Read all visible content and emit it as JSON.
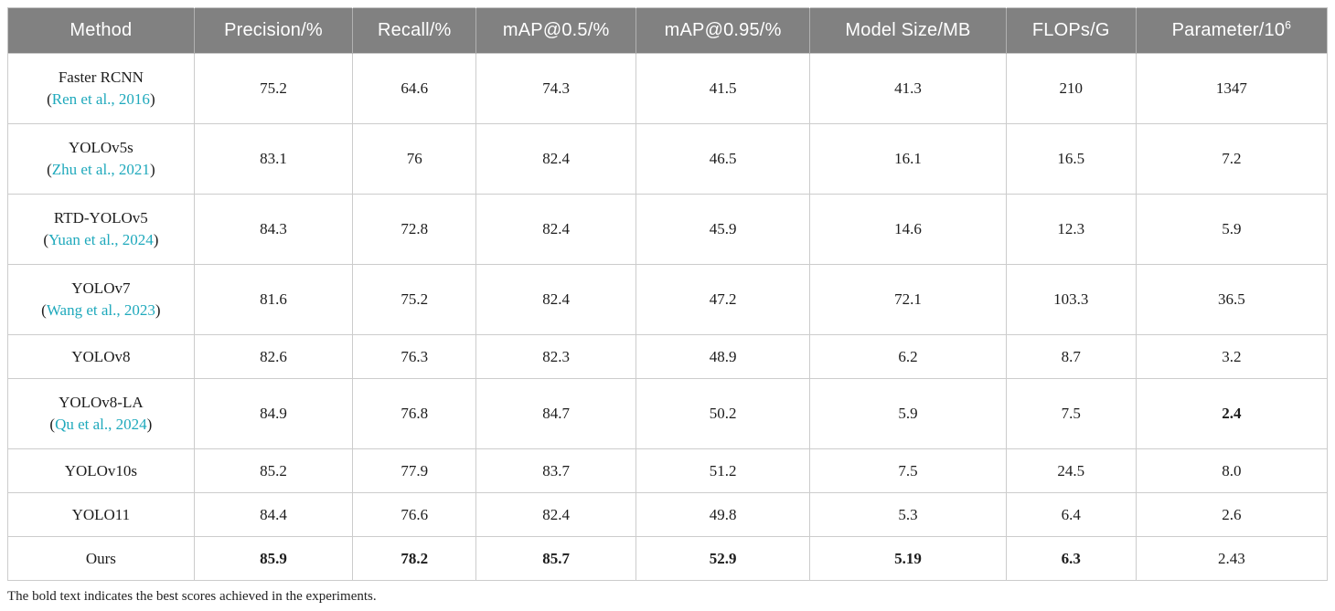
{
  "colors": {
    "header_bg": "#818181",
    "header_text": "#ffffff",
    "body_text": "#1c1c1c",
    "citation_link": "#1fa9bc",
    "grid_line": "#cccccc"
  },
  "table": {
    "citation_paren_open": "(",
    "citation_paren_close": ")",
    "columns": [
      {
        "key": "method",
        "label": "Method"
      },
      {
        "key": "precision",
        "label": "Precision/%"
      },
      {
        "key": "recall",
        "label": "Recall/%"
      },
      {
        "key": "map05",
        "label": "mAP@0.5/%"
      },
      {
        "key": "map095",
        "label": "mAP@0.95/%"
      },
      {
        "key": "model-size",
        "label": "Model Size/MB"
      },
      {
        "key": "flops",
        "label": "FLOPs/G"
      },
      {
        "key": "parameter",
        "label": "Parameter/10",
        "sup": "6"
      }
    ],
    "rows": [
      {
        "method": "Faster RCNN",
        "citation": "Ren et al., 2016",
        "values": [
          "75.2",
          "64.6",
          "74.3",
          "41.5",
          "41.3",
          "210",
          "1347"
        ],
        "bold": []
      },
      {
        "method": "YOLOv5s",
        "citation": "Zhu et al., 2021",
        "values": [
          "83.1",
          "76",
          "82.4",
          "46.5",
          "16.1",
          "16.5",
          "7.2"
        ],
        "bold": []
      },
      {
        "method": "RTD-YOLOv5",
        "citation": "Yuan et al., 2024",
        "values": [
          "84.3",
          "72.8",
          "82.4",
          "45.9",
          "14.6",
          "12.3",
          "5.9"
        ],
        "bold": []
      },
      {
        "method": "YOLOv7",
        "citation": "Wang et al., 2023",
        "values": [
          "81.6",
          "75.2",
          "82.4",
          "47.2",
          "72.1",
          "103.3",
          "36.5"
        ],
        "bold": []
      },
      {
        "method": "YOLOv8",
        "citation": null,
        "values": [
          "82.6",
          "76.3",
          "82.3",
          "48.9",
          "6.2",
          "8.7",
          "3.2"
        ],
        "bold": []
      },
      {
        "method": "YOLOv8-LA",
        "citation": "Qu et al., 2024",
        "values": [
          "84.9",
          "76.8",
          "84.7",
          "50.2",
          "5.9",
          "7.5",
          "2.4"
        ],
        "bold": [
          6
        ]
      },
      {
        "method": "YOLOv10s",
        "citation": null,
        "values": [
          "85.2",
          "77.9",
          "83.7",
          "51.2",
          "7.5",
          "24.5",
          "8.0"
        ],
        "bold": []
      },
      {
        "method": "YOLO11",
        "citation": null,
        "values": [
          "84.4",
          "76.6",
          "82.4",
          "49.8",
          "5.3",
          "6.4",
          "2.6"
        ],
        "bold": []
      },
      {
        "method": "Ours",
        "citation": null,
        "values": [
          "85.9",
          "78.2",
          "85.7",
          "52.9",
          "5.19",
          "6.3",
          "2.43"
        ],
        "bold": [
          0,
          1,
          2,
          3,
          4,
          5
        ]
      }
    ],
    "footnote": "The bold text indicates the best scores achieved in the experiments."
  }
}
